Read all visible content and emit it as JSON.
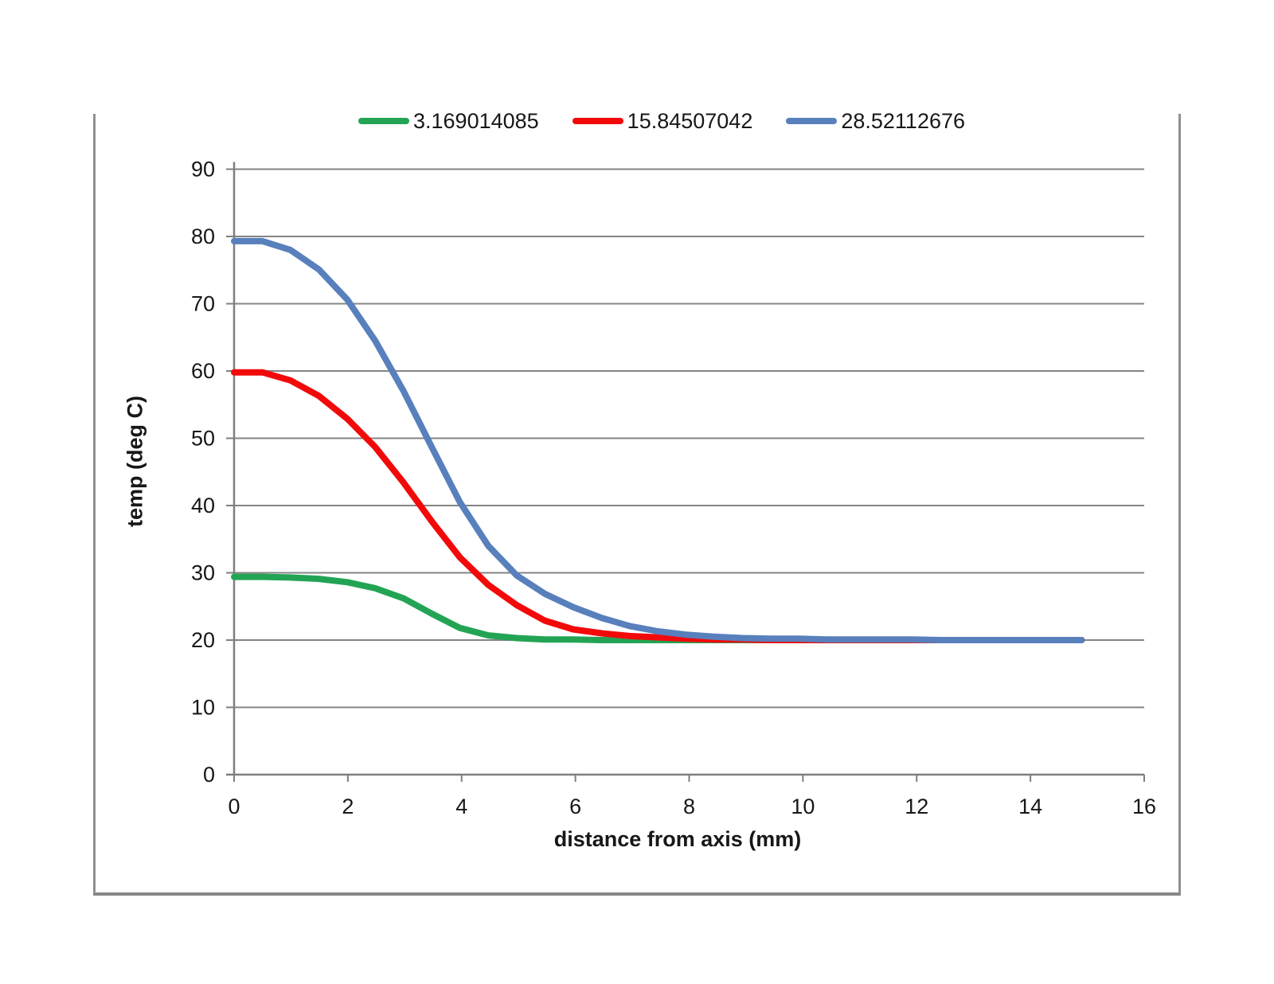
{
  "chart_data": {
    "type": "line",
    "title": "",
    "xlabel": "distance from axis (mm)",
    "ylabel": "temp (deg C)",
    "xlim": [
      0,
      16
    ],
    "ylim": [
      0,
      90
    ],
    "xticks": [
      0,
      2,
      4,
      6,
      8,
      10,
      12,
      14,
      16
    ],
    "yticks": [
      0,
      10,
      20,
      30,
      40,
      50,
      60,
      70,
      80,
      90
    ],
    "grid": "horizontal",
    "legend_position": "top-center",
    "ambient_baseline": 20,
    "x": [
      0,
      0.5,
      0.99,
      1.49,
      1.99,
      2.48,
      2.98,
      3.48,
      3.97,
      4.47,
      4.97,
      5.46,
      5.96,
      6.46,
      6.95,
      7.45,
      7.95,
      8.44,
      8.94,
      9.44,
      9.93,
      10.43,
      10.93,
      11.42,
      11.92,
      12.42,
      12.91,
      13.41,
      13.91,
      14.4,
      14.9
    ],
    "series": [
      {
        "name": "3.169014085",
        "color": "#23A455",
        "values": [
          29.4,
          29.4,
          29.3,
          29.1,
          28.6,
          27.7,
          26.2,
          23.9,
          21.8,
          20.7,
          20.3,
          20.1,
          20.1,
          20.0,
          20.0,
          20.0,
          20.0,
          20.0,
          20.0,
          20.0,
          20.0,
          20.0,
          20.0,
          20.0,
          20.0,
          20.0,
          20.0,
          20.0,
          20.0,
          20.0,
          20.0
        ]
      },
      {
        "name": "15.84507042",
        "color": "#F20A0A",
        "values": [
          59.8,
          59.8,
          58.6,
          56.3,
          52.9,
          48.7,
          43.4,
          37.6,
          32.3,
          28.2,
          25.2,
          22.9,
          21.6,
          21.0,
          20.6,
          20.4,
          20.2,
          20.1,
          20.1,
          20.0,
          20.0,
          20.0,
          20.0,
          20.0,
          20.0,
          20.0,
          20.0,
          20.0,
          20.0,
          20.0,
          20.0
        ]
      },
      {
        "name": "28.52112676",
        "color": "#5880BC",
        "values": [
          79.3,
          79.3,
          78.0,
          75.1,
          70.6,
          64.5,
          57.0,
          48.6,
          40.5,
          34.0,
          29.6,
          26.9,
          24.9,
          23.3,
          22.1,
          21.3,
          20.8,
          20.5,
          20.3,
          20.2,
          20.2,
          20.1,
          20.1,
          20.1,
          20.1,
          20.0,
          20.0,
          20.0,
          20.0,
          20.0,
          20.0
        ]
      }
    ],
    "colors": {
      "gridline": "#848484",
      "axis": "#7f7f7f",
      "tick_text": "#171717",
      "frame_border": "#8f8f8f",
      "background": "#ffffff"
    }
  }
}
